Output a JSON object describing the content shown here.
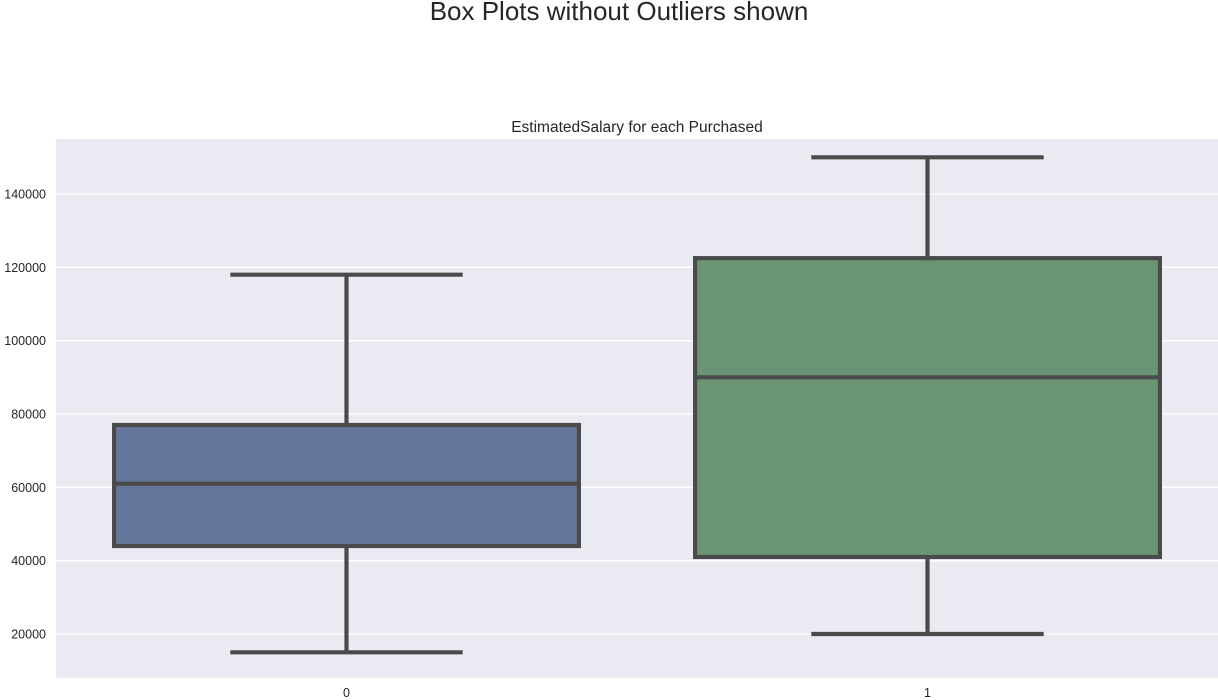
{
  "chart_data": {
    "type": "box",
    "suptitle": "Box Plots without Outliers shown",
    "title": "EstimatedSalary for each Purchased",
    "xlabel": "",
    "ylabel": "",
    "categories": [
      "0",
      "1"
    ],
    "ylim": [
      8000,
      155000
    ],
    "yticks": [
      20000,
      40000,
      60000,
      80000,
      100000,
      120000,
      140000
    ],
    "ytick_labels": [
      "20000",
      "40000",
      "60000",
      "80000",
      "100000",
      "120000",
      "140000"
    ],
    "grid": true,
    "background": "#eaeaf2",
    "boxes": [
      {
        "category": "0",
        "whisker_low": 15000,
        "q1": 44000,
        "median": 61000,
        "q3": 77000,
        "whisker_high": 118000,
        "color": "#64779a"
      },
      {
        "category": "1",
        "whisker_low": 20000,
        "q1": 41000,
        "median": 90000,
        "q3": 122500,
        "whisker_high": 150000,
        "color": "#6a9474"
      }
    ],
    "line_color": "#4a4a4a"
  }
}
